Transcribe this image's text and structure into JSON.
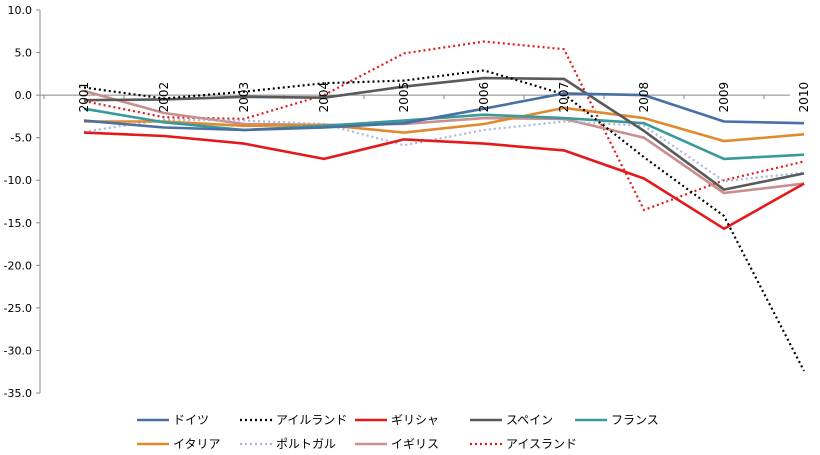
{
  "chart_data": {
    "type": "line",
    "x": [
      "2001",
      "2002",
      "2003",
      "2004",
      "2005",
      "2006",
      "2007",
      "2008",
      "2009",
      "2010"
    ],
    "ylim": [
      -35,
      10
    ],
    "yticks": [
      10,
      5,
      0,
      -5,
      -10,
      -15,
      -20,
      -25,
      -30,
      -35
    ],
    "ytick_labels": [
      "10.0",
      "5.0",
      "0.0",
      "-5.0",
      "-10.0",
      "-15.0",
      "-20.0",
      "-25.0",
      "-30.0",
      "-35.0"
    ],
    "legend_position": "bottom",
    "series": [
      {
        "name": "ドイツ",
        "color": "#4A6FA5",
        "dash": "solid",
        "values": [
          -3.0,
          -3.8,
          -4.1,
          -3.8,
          -3.3,
          -1.6,
          0.2,
          0.0,
          -3.1,
          -3.3
        ]
      },
      {
        "name": "アイルランド",
        "color": "#000000",
        "dash": "dotted",
        "values": [
          0.9,
          -0.4,
          0.4,
          1.4,
          1.7,
          2.9,
          0.1,
          -7.3,
          -14.2,
          -32.4
        ]
      },
      {
        "name": "ギリシャ",
        "color": "#E31A1C",
        "dash": "solid",
        "values": [
          -4.4,
          -4.8,
          -5.7,
          -7.5,
          -5.2,
          -5.7,
          -6.5,
          -9.8,
          -15.7,
          -10.4
        ]
      },
      {
        "name": "スペイン",
        "color": "#5A5A5A",
        "dash": "solid",
        "values": [
          -0.6,
          -0.5,
          -0.2,
          -0.3,
          1.0,
          2.0,
          1.9,
          -4.2,
          -11.1,
          -9.2
        ]
      },
      {
        "name": "フランス",
        "color": "#3A9A9A",
        "dash": "solid",
        "values": [
          -1.6,
          -3.2,
          -4.1,
          -3.6,
          -3.0,
          -2.3,
          -2.7,
          -3.3,
          -7.5,
          -7.0
        ]
      },
      {
        "name": "イタリア",
        "color": "#E08A2E",
        "dash": "solid",
        "values": [
          -3.1,
          -3.1,
          -3.6,
          -3.5,
          -4.4,
          -3.4,
          -1.5,
          -2.7,
          -5.4,
          -4.6
        ]
      },
      {
        "name": "ポルトガル",
        "color": "#A9B8D8",
        "dash": "dotted",
        "values": [
          -4.3,
          -2.9,
          -3.0,
          -3.4,
          -5.9,
          -4.1,
          -3.1,
          -3.6,
          -10.1,
          -9.1
        ]
      },
      {
        "name": "イギリス",
        "color": "#C98E8E",
        "dash": "solid",
        "values": [
          0.5,
          -2.1,
          -3.4,
          -3.5,
          -3.4,
          -2.7,
          -2.8,
          -5.0,
          -11.5,
          -10.4
        ]
      },
      {
        "name": "アイスランド",
        "color": "#E31A1C",
        "dash": "dotted",
        "values": [
          -0.7,
          -2.6,
          -2.8,
          0.0,
          4.9,
          6.3,
          5.4,
          -13.5,
          -10.0,
          -7.8
        ]
      }
    ]
  }
}
